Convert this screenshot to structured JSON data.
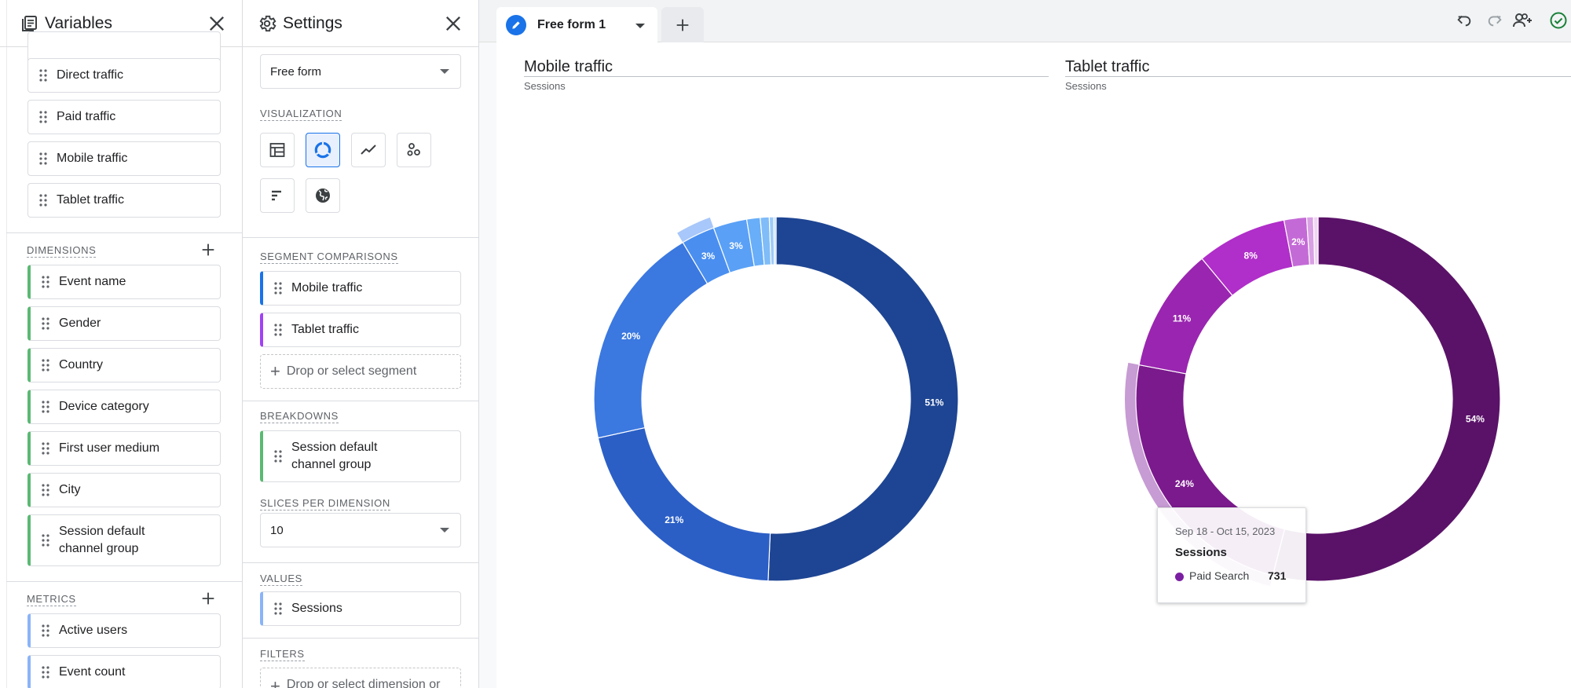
{
  "variables": {
    "title": "Variables",
    "segments": [
      "Direct traffic",
      "Paid traffic",
      "Mobile traffic",
      "Tablet traffic"
    ],
    "dimensions_label": "DIMENSIONS",
    "dimensions": [
      "Event name",
      "Gender",
      "Country",
      "Device category",
      "First user medium",
      "City",
      "Session default channel group"
    ],
    "metrics_label": "METRICS",
    "metrics": [
      "Active users",
      "Event count"
    ]
  },
  "settings": {
    "title": "Settings",
    "technique": "Free form",
    "visualization_label": "VISUALIZATION",
    "visualizations": [
      "table-icon",
      "donut-chart-icon",
      "line-chart-icon",
      "scatter-chart-icon",
      "bar-chart-icon",
      "geo-map-icon"
    ],
    "selected_visualization": "donut-chart-icon",
    "segment_comparisons_label": "SEGMENT COMPARISONS",
    "segment_comparisons": [
      {
        "label": "Mobile traffic",
        "color": "#1a73e8"
      },
      {
        "label": "Tablet traffic",
        "color": "#a142f4"
      }
    ],
    "drop_segment": "Drop or select segment",
    "breakdowns_label": "BREAKDOWNS",
    "breakdown": "Session default channel group",
    "slices_label": "SLICES PER DIMENSION",
    "slices_value": "10",
    "values_label": "VALUES",
    "value": "Sessions",
    "filters_label": "FILTERS",
    "drop_filter": "Drop or select dimension or"
  },
  "tabs": {
    "active": "Free form 1",
    "add_icon": "plus-icon"
  },
  "toolbar": [
    "undo-icon",
    "redo-icon",
    "share-user-icon",
    "check-circle-icon"
  ],
  "chart_data": [
    {
      "type": "pie",
      "title": "Mobile traffic",
      "subtitle": "Sessions",
      "values": [
        51,
        21,
        20,
        3,
        3,
        1.2,
        0.8,
        0.4,
        0.2
      ],
      "labels": [
        "51%",
        "21%",
        "20%",
        "3%",
        "3%",
        "",
        "",
        "",
        ""
      ],
      "colors": [
        "#1e4593",
        "#2b5fc6",
        "#3b78e0",
        "#4a8ff0",
        "#5aa0f6",
        "#68aef8",
        "#7fbcf8",
        "#9ecbf8",
        "#c3dcf6"
      ]
    },
    {
      "type": "pie",
      "title": "Tablet traffic",
      "subtitle": "Sessions",
      "values": [
        54,
        24,
        11,
        8,
        2,
        0.6,
        0.4
      ],
      "labels": [
        "54%",
        "24%",
        "11%",
        "8%",
        "2%",
        "",
        ""
      ],
      "colors": [
        "#5a1268",
        "#7b1a8d",
        "#9a25b0",
        "#b02ec9",
        "#c46ad6",
        "#d9a0e4",
        "#f0d5f3"
      ]
    }
  ],
  "tooltip": {
    "date": "Sep 18 - Oct 15, 2023",
    "metric": "Sessions",
    "series": "Paid Search",
    "value": "731"
  }
}
